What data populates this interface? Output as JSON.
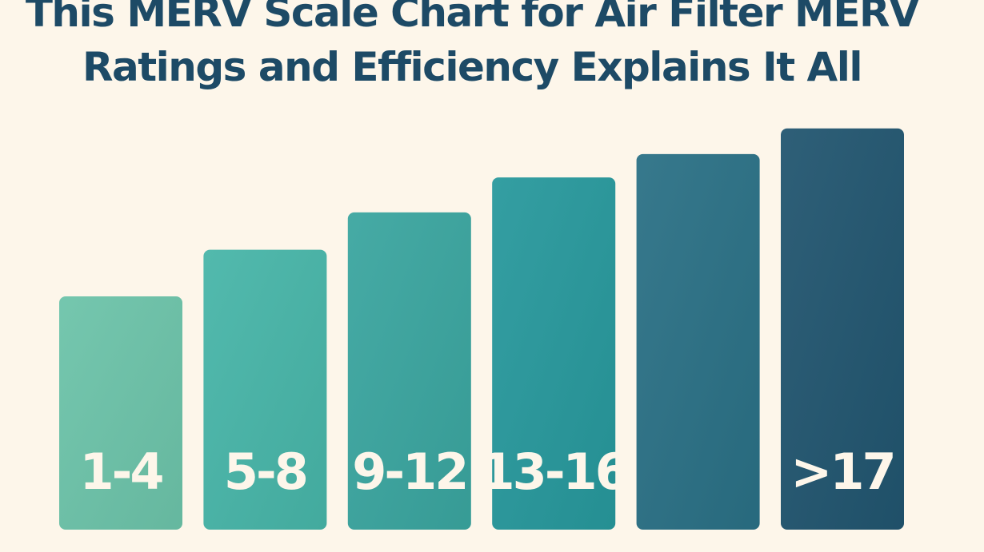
{
  "chart_data": {
    "type": "bar",
    "title_lines": [
      "This MERV Scale Chart for Air Filter MERV",
      "Ratings and Efficiency Explains It All"
    ],
    "categories": [
      "1-4",
      "5-8",
      "9-12",
      "13-16",
      "",
      ">17"
    ],
    "values": [
      1.0,
      1.2,
      1.36,
      1.51,
      1.61,
      1.72
    ],
    "colors": [
      "#6cc3a9",
      "#47b5a8",
      "#3aa59f",
      "#27989c",
      "#2a7085",
      "#21556f"
    ],
    "xlabel": "",
    "ylabel": "",
    "grid": false,
    "legend": "none"
  }
}
